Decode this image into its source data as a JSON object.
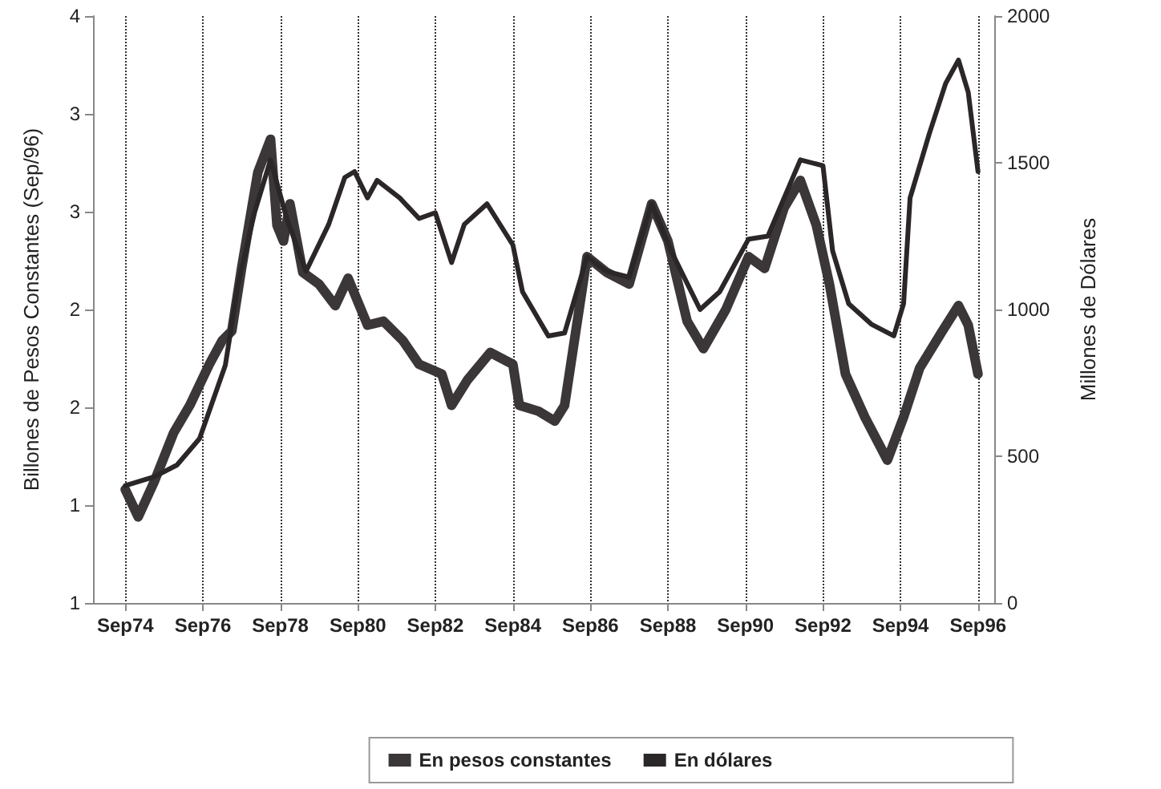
{
  "chart_data": {
    "type": "line",
    "ylabel": "Billones de Pesos Constantes (Sep/96)",
    "y2label": "Millones de Dólares",
    "xlim": [
      "1973-11",
      "1997-02"
    ],
    "xticks": [
      {
        "value": "1974-09",
        "label": "Sep74"
      },
      {
        "value": "1976-09",
        "label": "Sep76"
      },
      {
        "value": "1978-09",
        "label": "Sep78"
      },
      {
        "value": "1980-09",
        "label": "Sep80"
      },
      {
        "value": "1982-09",
        "label": "Sep82"
      },
      {
        "value": "1984-09",
        "label": "Sep84"
      },
      {
        "value": "1986-09",
        "label": "Sep86"
      },
      {
        "value": "1988-09",
        "label": "Sep88"
      },
      {
        "value": "1990-09",
        "label": "Sep90"
      },
      {
        "value": "1992-09",
        "label": "Sep92"
      },
      {
        "value": "1994-09",
        "label": "Sep94"
      },
      {
        "value": "1996-09",
        "label": "Sep96"
      }
    ],
    "ylim": [
      1,
      4
    ],
    "yticks": [
      1,
      {
        "value": 1.5,
        "label": "1"
      },
      2,
      {
        "value": 2.5,
        "label": "2"
      },
      3,
      {
        "value": 3.5,
        "label": "3"
      },
      4
    ],
    "y2lim": [
      0,
      2000
    ],
    "y2ticks": [
      0,
      500,
      1000,
      1500,
      2000
    ],
    "grid": "x",
    "legend": "bottom",
    "marker": "none",
    "line_style": "solid",
    "series": [
      {
        "name": "En pesos constantes",
        "color": "#3b3637",
        "axis": "y",
        "x": [
          "1974-09",
          "1975-01",
          "1975-06",
          "1975-12",
          "1976-05",
          "1976-11",
          "1977-03",
          "1977-06",
          "1977-09",
          "1978-02",
          "1978-06",
          "1978-08",
          "1978-10",
          "1978-12",
          "1979-04",
          "1979-09",
          "1980-02",
          "1980-06",
          "1980-12",
          "1981-05",
          "1981-11",
          "1982-04",
          "1982-11",
          "1983-02",
          "1983-07",
          "1984-02",
          "1984-09",
          "1984-11",
          "1985-05",
          "1985-10",
          "1986-01",
          "1986-08",
          "1987-02",
          "1987-09",
          "1988-04",
          "1988-09",
          "1989-03",
          "1989-08",
          "1990-03",
          "1990-10",
          "1991-03",
          "1991-09",
          "1992-02",
          "1992-07",
          "1992-11",
          "1993-04",
          "1993-10",
          "1994-05",
          "1994-10",
          "1995-03",
          "1995-10",
          "1996-03",
          "1996-06",
          "1996-09"
        ],
        "values": [
          1.58,
          1.44,
          1.62,
          1.87,
          2.01,
          2.22,
          2.34,
          2.39,
          2.71,
          3.2,
          3.37,
          2.93,
          2.85,
          3.04,
          2.69,
          2.63,
          2.52,
          2.66,
          2.42,
          2.44,
          2.34,
          2.22,
          2.17,
          2.01,
          2.14,
          2.28,
          2.22,
          2.01,
          1.98,
          1.93,
          2.01,
          2.77,
          2.69,
          2.63,
          3.04,
          2.85,
          2.44,
          2.3,
          2.5,
          2.77,
          2.71,
          3.02,
          3.16,
          2.93,
          2.63,
          2.17,
          1.95,
          1.73,
          1.95,
          2.2,
          2.39,
          2.52,
          2.42,
          2.17
        ]
      },
      {
        "name": "En dólares",
        "color": "#2b2627",
        "axis": "y2",
        "x": [
          "1974-09",
          "1975-06",
          "1976-01",
          "1976-08",
          "1977-04",
          "1977-08",
          "1978-01",
          "1978-06",
          "1978-11",
          "1979-05",
          "1979-12",
          "1980-05",
          "1980-08",
          "1980-12",
          "1981-03",
          "1981-10",
          "1982-04",
          "1982-09",
          "1983-02",
          "1983-06",
          "1984-01",
          "1984-09",
          "1984-12",
          "1985-08",
          "1986-01",
          "1986-08",
          "1987-02",
          "1987-09",
          "1988-04",
          "1988-10",
          "1989-07",
          "1990-01",
          "1990-10",
          "1991-04",
          "1992-02",
          "1992-09",
          "1992-12",
          "1993-05",
          "1993-12",
          "1994-07",
          "1994-10",
          "1994-12",
          "1995-06",
          "1995-11",
          "1996-03",
          "1996-06",
          "1996-09"
        ],
        "values": [
          400,
          430,
          470,
          560,
          810,
          1090,
          1330,
          1510,
          1310,
          1130,
          1290,
          1450,
          1470,
          1380,
          1440,
          1380,
          1310,
          1330,
          1160,
          1290,
          1360,
          1220,
          1060,
          910,
          920,
          1180,
          1130,
          1110,
          1360,
          1200,
          1000,
          1060,
          1240,
          1250,
          1510,
          1490,
          1200,
          1020,
          950,
          910,
          1020,
          1380,
          1600,
          1770,
          1850,
          1740,
          1470
        ]
      }
    ]
  }
}
